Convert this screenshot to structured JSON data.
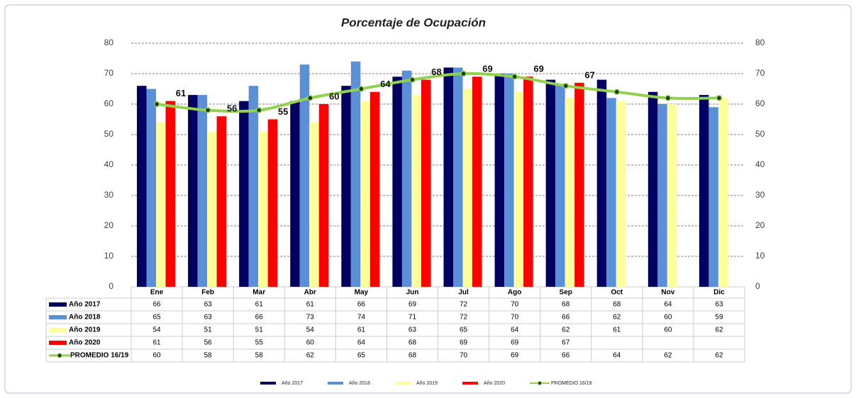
{
  "chart_data": {
    "type": "bar",
    "title": "Porcentaje de Ocupación",
    "categories": [
      "Ene",
      "Feb",
      "Mar",
      "Abr",
      "May",
      "Jun",
      "Jul",
      "Ago",
      "Sep",
      "Oct",
      "Nov",
      "Dic"
    ],
    "series": [
      {
        "name": "Año 2017",
        "color": "#000060",
        "values": [
          66,
          63,
          61,
          61,
          66,
          69,
          72,
          70,
          68,
          68,
          64,
          63
        ]
      },
      {
        "name": "Año 2018",
        "color": "#5b8fd8",
        "values": [
          65,
          63,
          66,
          73,
          74,
          71,
          72,
          70,
          66,
          62,
          60,
          59
        ]
      },
      {
        "name": "Año 2019",
        "color": "#ffff99",
        "values": [
          54,
          51,
          51,
          54,
          61,
          63,
          65,
          64,
          62,
          61,
          60,
          62
        ]
      },
      {
        "name": "Año 2020",
        "color": "#ff0000",
        "values": [
          61,
          56,
          55,
          60,
          64,
          68,
          69,
          69,
          67,
          null,
          null,
          null
        ],
        "data_labels": true
      },
      {
        "name": "PROMEDIO 16/19",
        "color": "#92d050",
        "type": "line",
        "values": [
          60,
          58,
          58,
          62,
          65,
          68,
          70,
          69,
          66,
          64,
          62,
          62
        ]
      }
    ],
    "ylim": [
      0,
      80
    ],
    "yticks": [
      0,
      10,
      20,
      30,
      40,
      50,
      60,
      70,
      80
    ],
    "y2lim": [
      0,
      80
    ],
    "y2ticks": [
      0,
      10,
      20,
      30,
      40,
      50,
      60,
      70,
      80
    ],
    "grid": true,
    "legend": "bottom"
  }
}
